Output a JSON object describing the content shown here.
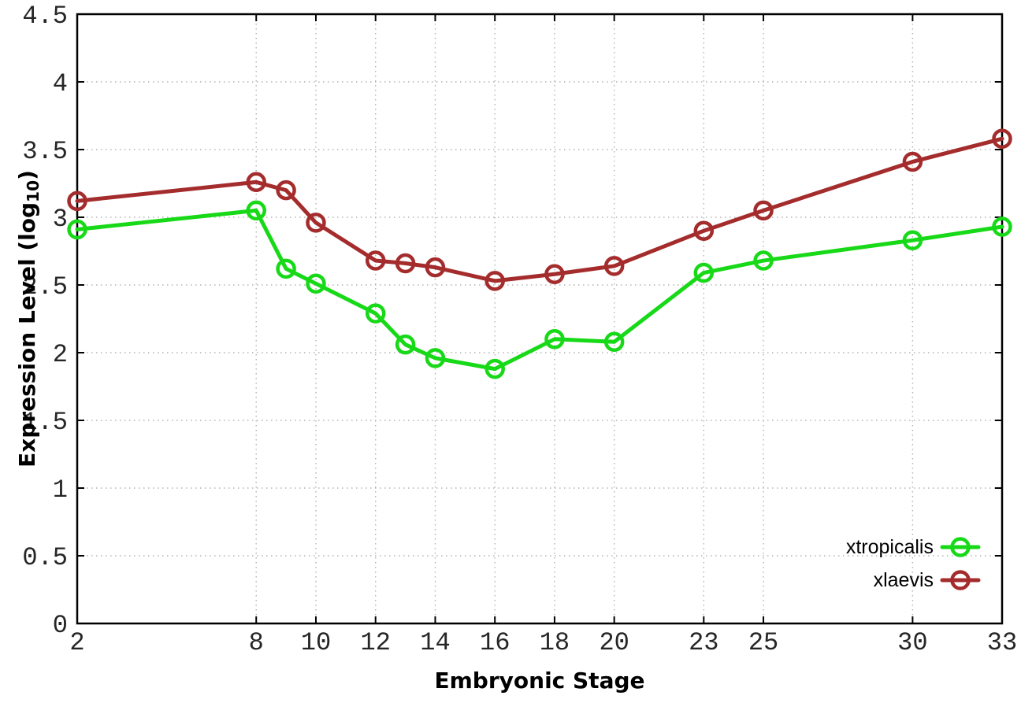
{
  "chart_data": {
    "type": "line",
    "title": "",
    "xlabel": "Embryonic Stage",
    "ylabel": {
      "pre": "Expression Level (log",
      "sub": "10",
      "post": ")"
    },
    "x": [
      2,
      8,
      9,
      10,
      12,
      13,
      14,
      16,
      18,
      20,
      23,
      25,
      30,
      33
    ],
    "series": [
      {
        "name": "xtropicalis",
        "color": "#17d917",
        "values": [
          2.91,
          3.05,
          2.62,
          2.51,
          2.29,
          2.06,
          1.96,
          1.88,
          2.1,
          2.08,
          2.59,
          2.68,
          2.83,
          2.93
        ]
      },
      {
        "name": "xlaevis",
        "color": "#a42c2c",
        "values": [
          3.12,
          3.26,
          3.2,
          2.96,
          2.68,
          2.66,
          2.63,
          2.53,
          2.58,
          2.64,
          2.9,
          3.05,
          3.41,
          3.58
        ]
      }
    ],
    "xlim": [
      2,
      33
    ],
    "ylim": [
      0,
      4.5
    ],
    "x_tick_values": [
      2,
      8,
      10,
      12,
      14,
      16,
      18,
      20,
      23,
      25,
      30,
      33
    ],
    "x_tick_labels": [
      "2",
      "8",
      "10",
      "12",
      "14",
      "16",
      "18",
      "20",
      "23",
      "25",
      "30",
      "33"
    ],
    "y_tick_values": [
      0,
      0.5,
      1,
      1.5,
      2,
      2.5,
      3,
      3.5,
      4,
      4.5
    ],
    "y_tick_labels": [
      "0",
      "0.5",
      "1",
      "1.5",
      "2",
      "2.5",
      "3",
      "3.5",
      "4",
      "4.5"
    ],
    "grid": true,
    "legend_position": "bottom-right-inside",
    "marker": "open-circle"
  },
  "colors": {
    "background": "#ffffff",
    "border": "#000000",
    "grid": "#b3b3b3",
    "tick_label": "#262626",
    "xtropicalis": "#17d917",
    "xlaevis": "#a42c2c"
  }
}
